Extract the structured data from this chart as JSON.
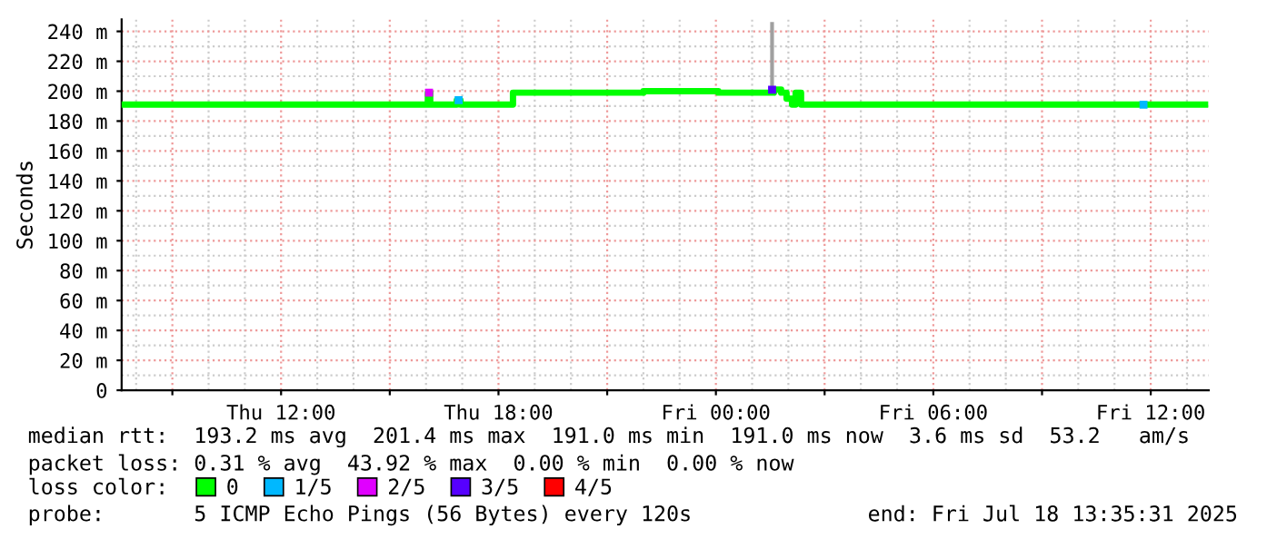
{
  "chart_data": {
    "type": "step",
    "ylabel": "Seconds",
    "xlim": [
      "2025-07-17T07:36",
      "2025-07-18T13:36"
    ],
    "xticks": [
      {
        "value": "2025-07-17T09:00",
        "label": null
      },
      {
        "value": "2025-07-17T12:00",
        "label": "Thu 12:00"
      },
      {
        "value": "2025-07-17T15:00",
        "label": null
      },
      {
        "value": "2025-07-17T18:00",
        "label": "Thu 18:00"
      },
      {
        "value": "2025-07-17T21:00",
        "label": null
      },
      {
        "value": "2025-07-18T00:00",
        "label": "Fri 00:00"
      },
      {
        "value": "2025-07-18T03:00",
        "label": null
      },
      {
        "value": "2025-07-18T06:00",
        "label": "Fri 06:00"
      },
      {
        "value": "2025-07-18T09:00",
        "label": null
      },
      {
        "value": "2025-07-18T12:00",
        "label": "Fri 12:00"
      }
    ],
    "ylim": [
      0,
      248
    ],
    "yticks": [
      0,
      {
        "value": 20,
        "label": "20 m"
      },
      {
        "value": 40,
        "label": "40 m"
      },
      {
        "value": 60,
        "label": "60 m"
      },
      {
        "value": 80,
        "label": "80 m"
      },
      {
        "value": 100,
        "label": "100 m"
      },
      {
        "value": 120,
        "label": "120 m"
      },
      {
        "value": 140,
        "label": "140 m"
      },
      {
        "value": 160,
        "label": "160 m"
      },
      {
        "value": 180,
        "label": "180 m"
      },
      {
        "value": 200,
        "label": "200 m"
      },
      {
        "value": 220,
        "label": "220 m"
      },
      {
        "value": 240,
        "label": "240 m"
      }
    ],
    "grid": true,
    "legend": "bottom",
    "legend_title": "loss color:",
    "series": [
      {
        "type": "line",
        "color": "#a0a0a0",
        "x": [
          "2025-07-18T01:33",
          "2025-07-18T01:33"
        ],
        "values": [
          200,
          245
        ]
      },
      {
        "name": "0",
        "color": "#00ff00",
        "x": [
          "2025-07-17T07:36",
          "2025-07-17T16:03",
          "2025-07-17T16:07",
          "2025-07-17T16:51",
          "2025-07-17T16:57",
          "2025-07-17T18:24",
          "2025-07-17T22:00",
          "2025-07-18T00:04",
          "2025-07-18T01:36",
          "2025-07-18T01:48",
          "2025-07-18T01:57",
          "2025-07-18T02:06",
          "2025-07-18T02:12",
          "2025-07-18T02:21",
          "2025-07-18T13:30"
        ],
        "values": [
          191,
          199,
          191,
          194,
          191,
          199,
          200,
          199,
          201,
          199,
          195,
          191,
          199,
          191,
          191
        ]
      },
      {
        "name": "1/5",
        "type": "scatter",
        "color": "#00b8ff",
        "x": [
          "2025-07-17T16:54",
          "2025-07-18T11:48"
        ],
        "values": [
          194,
          191
        ]
      },
      {
        "name": "2/5",
        "type": "scatter",
        "color": "#e000ff",
        "x": [
          "2025-07-17T16:05"
        ],
        "values": [
          199
        ]
      },
      {
        "name": "3/5",
        "type": "scatter",
        "color": "#5600ff",
        "x": [
          "2025-07-18T01:33"
        ],
        "values": [
          201
        ]
      },
      {
        "name": "4/5",
        "type": "scatter",
        "color": "#ff0000"
      }
    ],
    "annotations": [
      "median rtt:  193.2 ms avg  201.4 ms max  191.0 ms min  191.0 ms now  3.6 ms sd  53.2   am/s",
      "packet loss: 0.31 % avg  43.92 % max  0.00 % min  0.00 % now",
      "probe:       5 ICMP Echo Pings (56 Bytes) every 120s",
      "end: Fri Jul 18 13:35:31 2025"
    ]
  }
}
